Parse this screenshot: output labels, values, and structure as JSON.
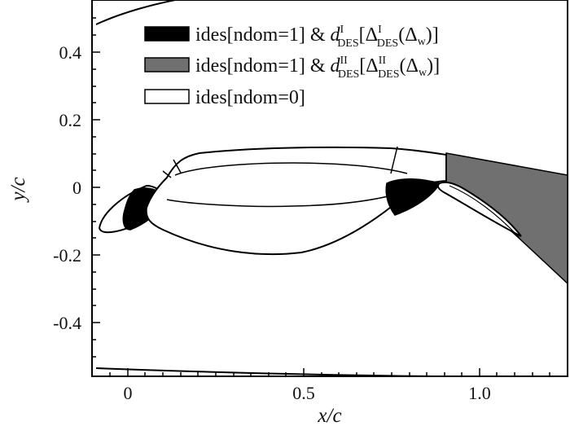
{
  "figure": {
    "xlabel": "x/c",
    "ylabel": "y/c",
    "xticks": [
      "0",
      "0.5",
      "1.0"
    ],
    "yticks": [
      "0.4",
      "0.2",
      "0",
      "-0.2",
      "-0.4"
    ],
    "colors": {
      "fill_dark": "#000000",
      "fill_gray": "#707070",
      "line": "#000000",
      "background": "#ffffff"
    }
  },
  "legend": {
    "entries": [
      {
        "prefix": "ides[ndom=1] & ",
        "sym": "d",
        "sup": "I",
        "sub": "DES",
        "bracket_open": "[",
        "delta": "Δ",
        "delta_sup": "I",
        "delta_sub": "DES",
        "paren": "(Δ",
        "w": "w",
        "close": ")]",
        "swatch": "dark"
      },
      {
        "prefix": "ides[ndom=1] & ",
        "sym": "d",
        "sup": "II",
        "sub": "DES",
        "bracket_open": "[",
        "delta": "Δ",
        "delta_sup": "II",
        "delta_sub": "DES",
        "paren": "(Δ",
        "w": "w",
        "close": ")]",
        "swatch": "gray"
      },
      {
        "text": "ides[ndom=0]",
        "swatch": "white"
      }
    ]
  }
}
